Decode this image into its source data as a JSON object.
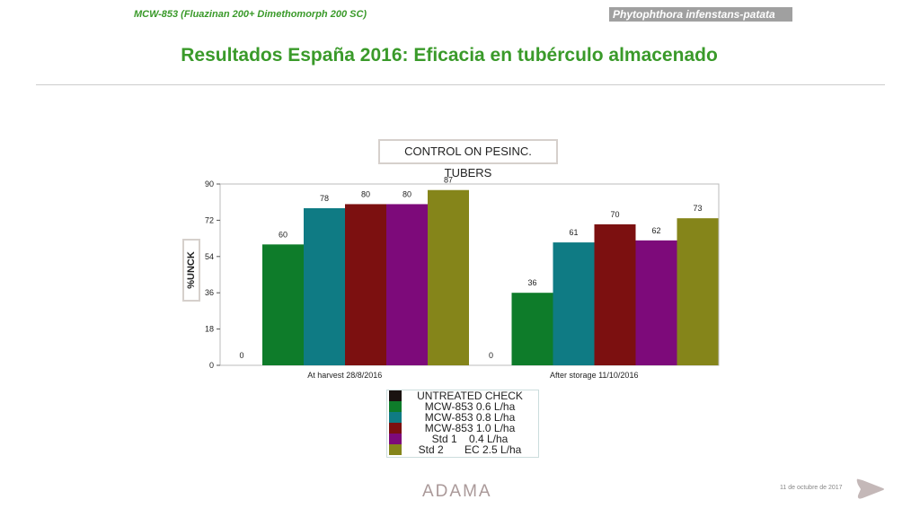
{
  "header": {
    "product": "MCW-853 (Fluazinan 200+ Dimethomorph 200 SC)",
    "topic_italic": "Phytophthora infenstans",
    "topic_suffix": "-patata"
  },
  "slide_title": "Resultados España 2016: Eficacia en tubérculo almacenado",
  "footer": {
    "logo": "ADAMA",
    "date": "11 de octubre de 2017"
  },
  "chart_data": {
    "type": "bar",
    "title": "CONTROL ON PESINC. TUBERS",
    "ylabel": "%UNCK",
    "xlabel": "",
    "ylim": [
      0,
      90
    ],
    "yticks": [
      0,
      18,
      36,
      54,
      72,
      90
    ],
    "categories": [
      "At harvest 28/8/2016",
      "After storage 11/10/2016"
    ],
    "series": [
      {
        "name": "UNTREATED CHECK",
        "color": "#1a1310",
        "values": [
          0,
          0
        ]
      },
      {
        "name": "MCW-853 0.6 L/ha",
        "color": "#0e7c2a",
        "values": [
          60,
          36
        ]
      },
      {
        "name": "MCW-853 0.8 L/ha",
        "color": "#0f7b84",
        "values": [
          78,
          61
        ]
      },
      {
        "name": "MCW-853 1.0 L/ha",
        "color": "#7c1010",
        "values": [
          80,
          70
        ]
      },
      {
        "name": "Std 1    0.4 L/ha",
        "color": "#7d0a7a",
        "values": [
          80,
          62
        ]
      },
      {
        "name": "Std 2       EC 2.5 L/ha",
        "color": "#85851a",
        "values": [
          87,
          73
        ]
      }
    ],
    "legend": "bottom",
    "grid": false
  }
}
